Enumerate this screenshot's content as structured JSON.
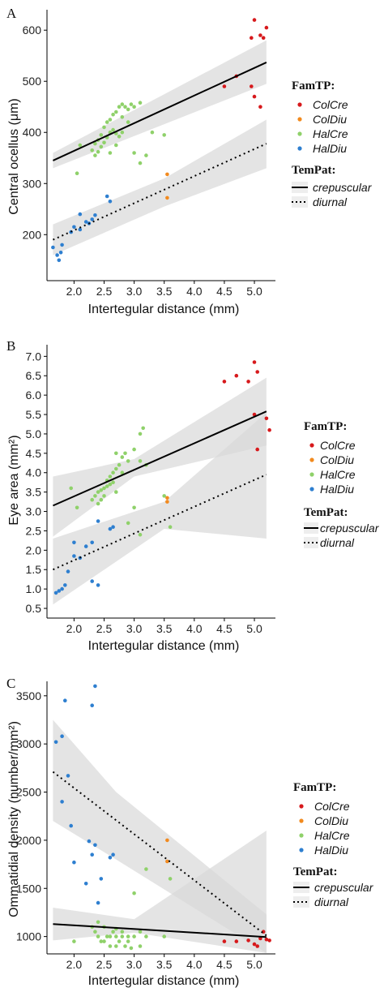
{
  "chart_data": [
    {
      "type": "scatter",
      "panel": "A",
      "xlabel": "Intertegular distance (mm)",
      "ylabel": "Central ocellus (μm)",
      "xlim": [
        1.55,
        5.35
      ],
      "ylim": [
        110,
        640
      ],
      "xticks": [
        2.0,
        2.5,
        3.0,
        3.5,
        4.0,
        4.5,
        5.0
      ],
      "xtick_labels": [
        "2.0",
        "2.5",
        "3.0",
        "3.5",
        "4.0",
        "4.5",
        "5.0"
      ],
      "yticks": [
        100,
        200,
        300,
        400,
        500,
        600
      ],
      "ytick_labels": [
        "100",
        "200",
        "300",
        "400",
        "500",
        "600"
      ],
      "groups": [
        {
          "name": "ColCre",
          "color": "#d7191c",
          "points": [
            [
              5.0,
              620
            ],
            [
              5.1,
              590
            ],
            [
              5.2,
              605
            ],
            [
              5.15,
              585
            ],
            [
              4.95,
              585
            ],
            [
              4.5,
              490
            ],
            [
              4.7,
              510
            ],
            [
              4.95,
              490
            ],
            [
              5.0,
              470
            ],
            [
              5.1,
              450
            ]
          ]
        },
        {
          "name": "ColDiu",
          "color": "#f28a1e",
          "points": [
            [
              3.55,
              318
            ],
            [
              3.55,
              272
            ]
          ]
        },
        {
          "name": "HalCre",
          "color": "#8fd16a",
          "points": [
            [
              2.1,
              375
            ],
            [
              2.3,
              365
            ],
            [
              2.35,
              378
            ],
            [
              2.4,
              385
            ],
            [
              2.45,
              395
            ],
            [
              2.5,
              410
            ],
            [
              2.55,
              420
            ],
            [
              2.6,
              425
            ],
            [
              2.65,
              435
            ],
            [
              2.7,
              440
            ],
            [
              2.75,
              450
            ],
            [
              2.8,
              455
            ],
            [
              2.85,
              450
            ],
            [
              2.9,
              445
            ],
            [
              2.95,
              455
            ],
            [
              3.0,
              450
            ],
            [
              3.1,
              458
            ],
            [
              2.6,
              400
            ],
            [
              2.65,
              405
            ],
            [
              2.7,
              398
            ],
            [
              2.75,
              392
            ],
            [
              2.8,
              400
            ],
            [
              2.55,
              390
            ],
            [
              2.5,
              380
            ],
            [
              2.45,
              372
            ],
            [
              2.4,
              362
            ],
            [
              2.35,
              355
            ],
            [
              3.3,
              400
            ],
            [
              3.5,
              395
            ],
            [
              3.0,
              360
            ],
            [
              3.1,
              340
            ],
            [
              3.2,
              355
            ],
            [
              2.05,
              320
            ],
            [
              2.6,
              360
            ],
            [
              2.7,
              375
            ],
            [
              2.8,
              430
            ],
            [
              2.9,
              420
            ]
          ]
        },
        {
          "name": "HalDiu",
          "color": "#2e7fd0",
          "points": [
            [
              1.65,
              175
            ],
            [
              1.72,
              160
            ],
            [
              1.78,
              165
            ],
            [
              1.8,
              180
            ],
            [
              1.75,
              150
            ],
            [
              1.95,
              205
            ],
            [
              2.0,
              215
            ],
            [
              2.1,
              210
            ],
            [
              2.2,
              225
            ],
            [
              2.25,
              222
            ],
            [
              2.3,
              230
            ],
            [
              2.35,
              238
            ],
            [
              2.1,
              240
            ],
            [
              2.55,
              275
            ],
            [
              2.6,
              265
            ]
          ]
        }
      ],
      "fits": [
        {
          "name": "crepuscular",
          "style": "solid",
          "x": [
            1.65,
            5.2
          ],
          "y": [
            345,
            537
          ],
          "band": [
            [
              1.65,
              330,
              360
            ],
            [
              5.2,
              495,
              580
            ]
          ]
        },
        {
          "name": "diurnal",
          "style": "dotted",
          "x": [
            1.65,
            5.2
          ],
          "y": [
            190,
            378
          ],
          "band": [
            [
              1.65,
              160,
              220
            ],
            [
              3.5,
              255,
              310
            ],
            [
              5.2,
              330,
              425
            ]
          ]
        }
      ]
    },
    {
      "type": "scatter",
      "panel": "B",
      "xlabel": "Intertegular distance (mm)",
      "ylabel": "Eye area (mm²)",
      "xlim": [
        1.55,
        5.35
      ],
      "ylim": [
        0.25,
        7.3
      ],
      "xticks": [
        2.0,
        2.5,
        3.0,
        3.5,
        4.0,
        4.5,
        5.0
      ],
      "xtick_labels": [
        "2.0",
        "2.5",
        "3.0",
        "3.5",
        "4.0",
        "4.5",
        "5.0"
      ],
      "yticks": [
        0.5,
        1.0,
        1.5,
        2.0,
        2.5,
        3.0,
        3.5,
        4.0,
        4.5,
        5.0,
        5.5,
        6.0,
        6.5,
        7.0
      ],
      "ytick_labels": [
        "0.5",
        "1.0",
        "1.5",
        "2.0",
        "2.5",
        "3.0",
        "3.5",
        "4.0",
        "4.5",
        "5.0",
        "5.5",
        "6.0",
        "6.5",
        "7.0"
      ],
      "groups": [
        {
          "name": "ColCre",
          "color": "#d7191c",
          "points": [
            [
              5.0,
              6.85
            ],
            [
              4.5,
              6.35
            ],
            [
              4.7,
              6.5
            ],
            [
              4.9,
              6.35
            ],
            [
              5.05,
              6.6
            ],
            [
              5.2,
              5.4
            ],
            [
              5.25,
              5.1
            ],
            [
              5.0,
              5.5
            ],
            [
              5.05,
              4.6
            ]
          ]
        },
        {
          "name": "ColDiu",
          "color": "#f28a1e",
          "points": [
            [
              3.55,
              3.35
            ],
            [
              3.55,
              3.25
            ]
          ]
        },
        {
          "name": "HalCre",
          "color": "#8fd16a",
          "points": [
            [
              2.3,
              3.3
            ],
            [
              2.35,
              3.4
            ],
            [
              2.4,
              3.5
            ],
            [
              2.45,
              3.55
            ],
            [
              2.5,
              3.6
            ],
            [
              2.55,
              3.8
            ],
            [
              2.6,
              3.9
            ],
            [
              2.65,
              4.0
            ],
            [
              2.7,
              4.1
            ],
            [
              2.75,
              4.2
            ],
            [
              2.8,
              4.4
            ],
            [
              2.85,
              4.5
            ],
            [
              2.9,
              4.3
            ],
            [
              2.55,
              3.65
            ],
            [
              2.6,
              3.7
            ],
            [
              2.65,
              3.75
            ],
            [
              2.7,
              3.5
            ],
            [
              2.5,
              3.4
            ],
            [
              2.45,
              3.3
            ],
            [
              2.4,
              3.2
            ],
            [
              3.1,
              5.0
            ],
            [
              3.15,
              5.15
            ],
            [
              3.0,
              4.6
            ],
            [
              3.1,
              4.3
            ],
            [
              3.2,
              4.2
            ],
            [
              3.5,
              3.4
            ],
            [
              3.6,
              2.6
            ],
            [
              3.1,
              2.4
            ],
            [
              2.9,
              2.7
            ],
            [
              3.0,
              3.1
            ],
            [
              2.05,
              3.1
            ],
            [
              1.95,
              3.6
            ],
            [
              2.7,
              4.5
            ],
            [
              2.8,
              4.0
            ]
          ]
        },
        {
          "name": "HalDiu",
          "color": "#2e7fd0",
          "points": [
            [
              1.7,
              0.9
            ],
            [
              1.8,
              1.0
            ],
            [
              1.85,
              1.1
            ],
            [
              1.75,
              0.95
            ],
            [
              1.9,
              1.45
            ],
            [
              2.0,
              1.85
            ],
            [
              2.1,
              1.8
            ],
            [
              2.0,
              2.2
            ],
            [
              2.2,
              2.1
            ],
            [
              2.3,
              2.2
            ],
            [
              2.3,
              1.2
            ],
            [
              2.4,
              1.1
            ],
            [
              2.4,
              2.75
            ],
            [
              2.6,
              2.55
            ],
            [
              2.65,
              2.6
            ]
          ]
        }
      ],
      "fits": [
        {
          "name": "crepuscular",
          "style": "solid",
          "x": [
            1.65,
            5.2
          ],
          "y": [
            3.15,
            5.58
          ],
          "band": [
            [
              1.65,
              2.35,
              3.9
            ],
            [
              3.0,
              3.9,
              4.35
            ],
            [
              5.2,
              4.7,
              6.45
            ]
          ]
        },
        {
          "name": "diurnal",
          "style": "dotted",
          "x": [
            1.65,
            5.2
          ],
          "y": [
            1.5,
            3.95
          ],
          "band": [
            [
              1.65,
              0.6,
              2.3
            ],
            [
              3.5,
              2.55,
              3.25
            ],
            [
              5.2,
              2.3,
              5.55
            ]
          ]
        }
      ]
    },
    {
      "type": "scatter",
      "panel": "C",
      "xlabel": "Intertegular distance (mm)",
      "ylabel": "Ommatidial density (number/mm²)",
      "xlim": [
        1.55,
        5.35
      ],
      "ylim": [
        820,
        3650
      ],
      "xticks": [
        2.0,
        2.5,
        3.0,
        3.5,
        4.0,
        4.5,
        5.0
      ],
      "xtick_labels": [
        "2.0",
        "2.5",
        "3.0",
        "3.5",
        "4.0",
        "4.5",
        "5.0"
      ],
      "yticks": [
        1000,
        1500,
        2000,
        2500,
        3000,
        3500
      ],
      "ytick_labels": [
        "1000",
        "1500",
        "2000",
        "2500",
        "3000",
        "3500"
      ],
      "groups": [
        {
          "name": "ColCre",
          "color": "#d7191c",
          "points": [
            [
              4.5,
              950
            ],
            [
              4.7,
              950
            ],
            [
              4.9,
              960
            ],
            [
              5.0,
              920
            ],
            [
              5.05,
              900
            ],
            [
              5.1,
              980
            ],
            [
              5.15,
              1050
            ],
            [
              5.2,
              970
            ],
            [
              5.25,
              960
            ]
          ]
        },
        {
          "name": "ColDiu",
          "color": "#f28a1e",
          "points": [
            [
              3.55,
              2000
            ],
            [
              3.55,
              1780
            ]
          ]
        },
        {
          "name": "HalCre",
          "color": "#8fd16a",
          "points": [
            [
              2.3,
              1100
            ],
            [
              2.35,
              1050
            ],
            [
              2.4,
              1000
            ],
            [
              2.45,
              950
            ],
            [
              2.5,
              1100
            ],
            [
              2.55,
              1000
            ],
            [
              2.6,
              900
            ],
            [
              2.65,
              1050
            ],
            [
              2.7,
              1000
            ],
            [
              2.75,
              950
            ],
            [
              2.8,
              1000
            ],
            [
              2.85,
              900
            ],
            [
              2.9,
              950
            ],
            [
              2.95,
              880
            ],
            [
              3.0,
              1000
            ],
            [
              3.1,
              900
            ],
            [
              3.2,
              1000
            ],
            [
              2.4,
              1150
            ],
            [
              2.5,
              950
            ],
            [
              2.6,
              1000
            ],
            [
              2.7,
              1080
            ],
            [
              2.8,
              1050
            ],
            [
              3.0,
              1450
            ],
            [
              3.2,
              1700
            ],
            [
              3.6,
              1600
            ],
            [
              3.5,
              1000
            ],
            [
              2.0,
              950
            ],
            [
              2.7,
              900
            ],
            [
              2.9,
              1000
            ],
            [
              3.1,
              1050
            ]
          ]
        },
        {
          "name": "HalDiu",
          "color": "#2e7fd0",
          "points": [
            [
              1.7,
              3020
            ],
            [
              1.85,
              3450
            ],
            [
              1.8,
              3080
            ],
            [
              1.9,
              2670
            ],
            [
              1.8,
              2400
            ],
            [
              1.95,
              2150
            ],
            [
              2.0,
              1770
            ],
            [
              2.2,
              1550
            ],
            [
              2.25,
              1990
            ],
            [
              2.3,
              1850
            ],
            [
              2.35,
              1950
            ],
            [
              2.4,
              1350
            ],
            [
              2.45,
              1600
            ],
            [
              2.6,
              1820
            ],
            [
              2.65,
              1850
            ],
            [
              2.3,
              3400
            ],
            [
              2.35,
              3600
            ]
          ]
        }
      ],
      "fits": [
        {
          "name": "crepuscular",
          "style": "solid",
          "x": [
            1.65,
            5.2
          ],
          "y": [
            1130,
            995
          ],
          "band": [
            [
              1.65,
              960,
              1300
            ],
            [
              3.0,
              1040,
              1180
            ],
            [
              5.2,
              830,
              2100
            ]
          ]
        },
        {
          "name": "diurnal",
          "style": "dotted",
          "x": [
            1.65,
            5.2
          ],
          "y": [
            2710,
            1010
          ],
          "band": [
            [
              1.65,
              2200,
              3250
            ],
            [
              2.7,
              1800,
              2500
            ],
            [
              5.2,
              830,
              1230
            ]
          ]
        }
      ]
    }
  ],
  "panels": [
    {
      "letter": "A",
      "ylabel": "Central ocellus (μm)",
      "xlabel": "Intertegular distance (mm)"
    },
    {
      "letter": "B",
      "ylabel": "Eye area (mm²)",
      "xlabel": "Intertegular distance (mm)"
    },
    {
      "letter": "C",
      "ylabel": "Ommatidial density (number/mm²)",
      "xlabel": "Intertegular distance (mm)"
    }
  ],
  "legend": {
    "famtp_title": "FamTP:",
    "famtp_items": [
      {
        "label": "ColCre",
        "color": "#d7191c"
      },
      {
        "label": "ColDiu",
        "color": "#f28a1e"
      },
      {
        "label": "HalCre",
        "color": "#8fd16a"
      },
      {
        "label": "HalDiu",
        "color": "#2e7fd0"
      }
    ],
    "tempat_title": "TemPat:",
    "tempat_items": [
      {
        "label": "crepuscular",
        "style": "solid"
      },
      {
        "label": "diurnal",
        "style": "dotted"
      }
    ]
  },
  "colors": {
    "band": "#d9d9d9",
    "line": "#000000"
  }
}
